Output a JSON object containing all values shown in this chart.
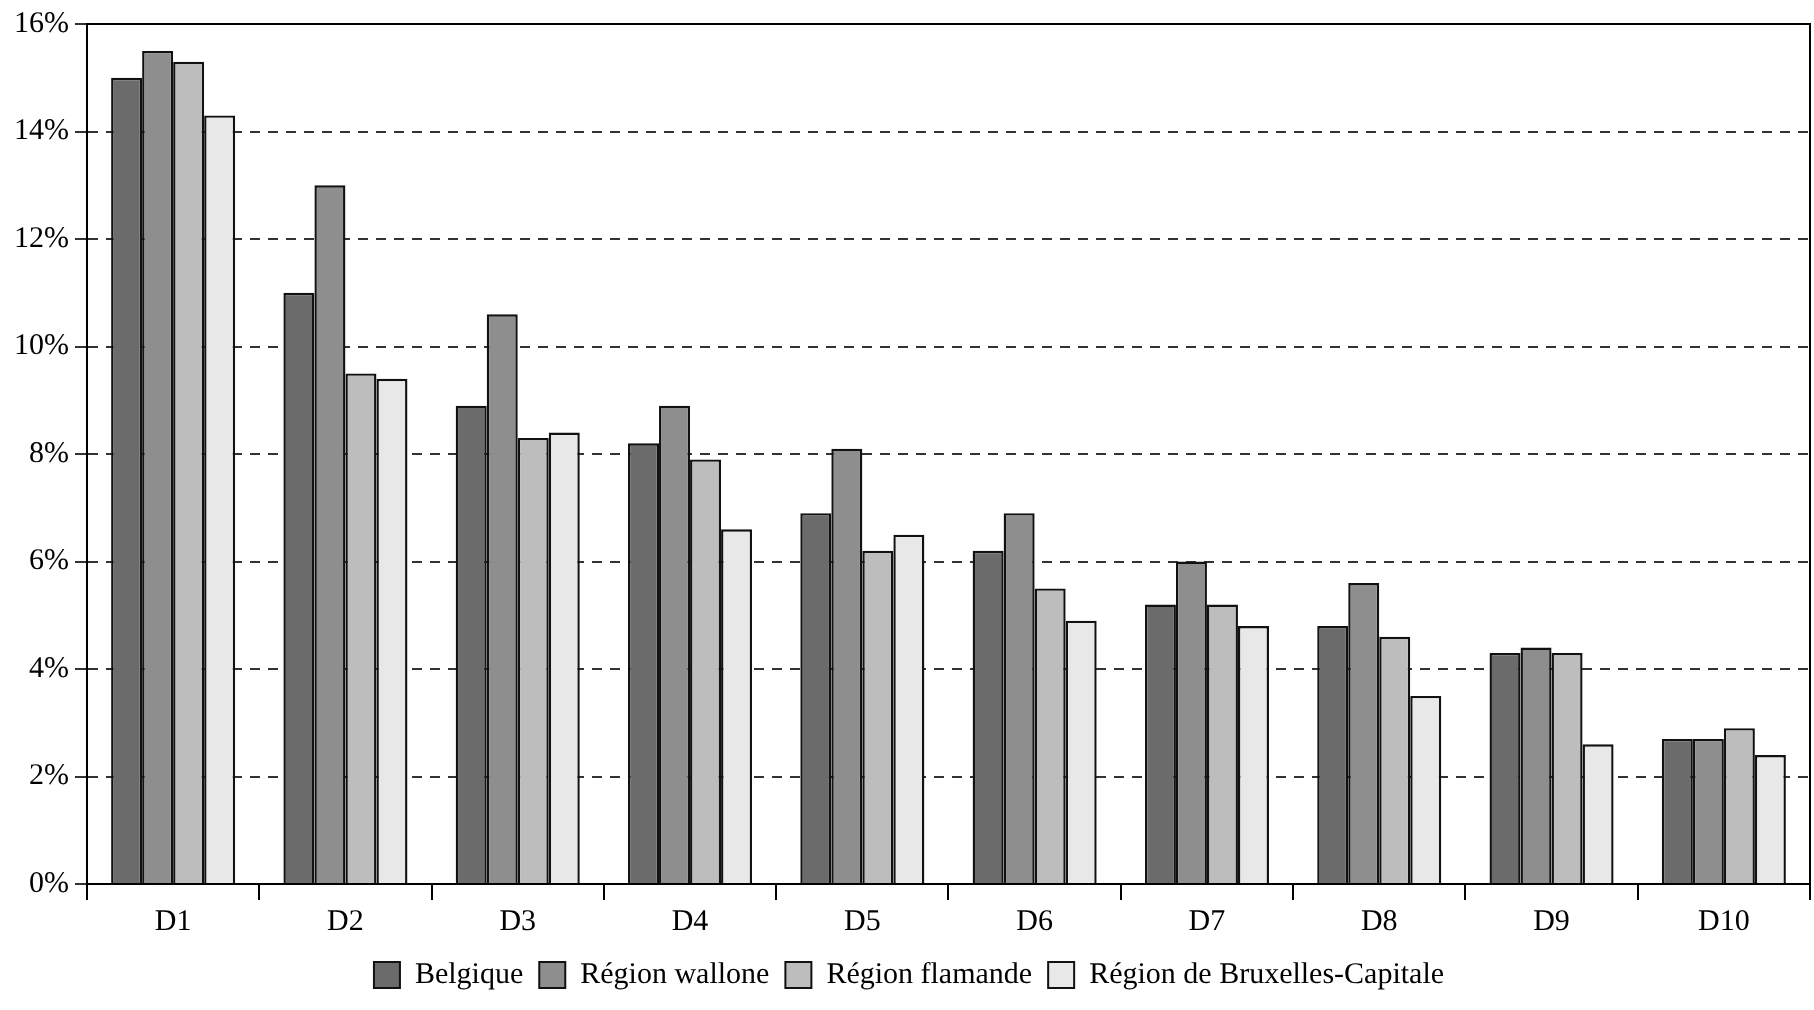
{
  "chart_data": {
    "type": "bar",
    "categories": [
      "D1",
      "D2",
      "D3",
      "D4",
      "D5",
      "D6",
      "D7",
      "D8",
      "D9",
      "D10"
    ],
    "series": [
      {
        "name": "Belgique",
        "color": "#6b6b6b",
        "values": [
          15.0,
          11.0,
          8.9,
          8.2,
          6.9,
          6.2,
          5.2,
          4.8,
          4.3,
          2.7
        ]
      },
      {
        "name": "Région wallone",
        "color": "#8e8e8e",
        "values": [
          15.5,
          13.0,
          10.6,
          8.9,
          8.1,
          6.9,
          6.0,
          5.6,
          4.4,
          2.7
        ]
      },
      {
        "name": "Région flamande",
        "color": "#bdbdbd",
        "values": [
          15.3,
          9.5,
          8.3,
          7.9,
          6.2,
          5.5,
          5.2,
          4.6,
          4.3,
          2.9
        ]
      },
      {
        "name": "Région de Bruxelles-Capitale",
        "color": "#e8e8e8",
        "values": [
          14.3,
          9.4,
          8.4,
          6.6,
          6.5,
          4.9,
          4.8,
          3.5,
          2.6,
          2.4
        ]
      }
    ],
    "ylim": [
      0,
      16
    ],
    "yticks": [
      {
        "value": 0,
        "label": "0%"
      },
      {
        "value": 2,
        "label": "2%"
      },
      {
        "value": 4,
        "label": "4%"
      },
      {
        "value": 6,
        "label": "6%"
      },
      {
        "value": 8,
        "label": "8%"
      },
      {
        "value": 10,
        "label": "10%"
      },
      {
        "value": 12,
        "label": "12%"
      },
      {
        "value": 14,
        "label": "14%"
      },
      {
        "value": 16,
        "label": "16%"
      }
    ],
    "grid": "y",
    "legend": "bottom"
  }
}
